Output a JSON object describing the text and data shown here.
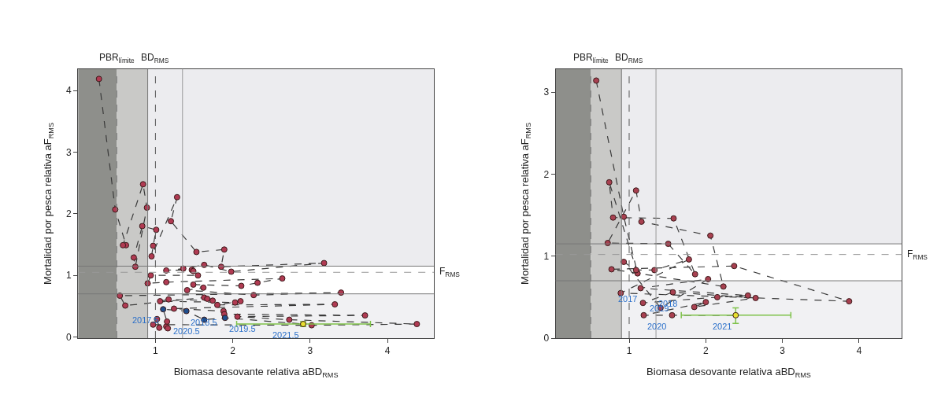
{
  "chart_data": [
    {
      "type": "scatter",
      "xlabel": "Biomasa desovante relativa aBD$_{RMS}$",
      "ylabel": "Mortalidad por pesca relativa aF$_{RMS}$",
      "xlim": [
        0,
        4.6
      ],
      "ylim": [
        -0.02,
        4.35
      ],
      "xticks": [
        1,
        2,
        3,
        4
      ],
      "yticks": [
        0,
        1,
        2,
        3,
        4
      ],
      "grid": false,
      "line_style": "dashed",
      "series": [
        {
          "type": "line",
          "color": "#3a3a3a",
          "marker": "none",
          "x": [
            0.27,
            0.48,
            0.62,
            0.58,
            0.84,
            0.89,
            0.74,
            0.72,
            0.83,
            1.01,
            0.97,
            0.95,
            1.28,
            1.2,
            1.53,
            1.89,
            1.85,
            3.18,
            1.98,
            1.63,
            1.36,
            1.14,
            1.47,
            1.49,
            1.55,
            0.94,
            0.9,
            1.14,
            2.64,
            2.32,
            2.11,
            1.49,
            1.62,
            1.41,
            2.27,
            3.4,
            0.54,
            0.61,
            1.63,
            1.67,
            1.74,
            1.17,
            1.06,
            2.03,
            2.1,
            1.8,
            3.32,
            1.24,
            1.88,
            1.89,
            3.71,
            2.06,
            2.73,
            4.38,
            3.02,
            0.97,
            1.02,
            1.05,
            1.14,
            1.16,
            1.15,
            1.1,
            1.4,
            1.63,
            1.9,
            2.91
          ],
          "values": [
            4.19,
            2.07,
            1.49,
            1.49,
            2.48,
            2.1,
            1.14,
            1.29,
            1.8,
            1.74,
            1.48,
            1.31,
            2.27,
            1.88,
            1.38,
            1.42,
            1.14,
            1.2,
            1.06,
            1.17,
            1.11,
            1.08,
            1.09,
            1.07,
            1.0,
            1.0,
            0.87,
            0.89,
            0.95,
            0.88,
            0.83,
            0.85,
            0.8,
            0.76,
            0.68,
            0.72,
            0.67,
            0.51,
            0.64,
            0.62,
            0.59,
            0.61,
            0.58,
            0.56,
            0.58,
            0.52,
            0.53,
            0.46,
            0.42,
            0.37,
            0.35,
            0.33,
            0.28,
            0.21,
            0.19,
            0.2,
            0.29,
            0.15,
            0.17,
            0.14,
            0.25,
            0.45,
            0.42,
            0.28,
            0.31,
            0.21
          ]
        },
        {
          "type": "scatter",
          "color": "#b03a52",
          "marker": "circle",
          "x": [
            0.27,
            0.48,
            0.62,
            0.58,
            0.84,
            0.89,
            0.74,
            0.72,
            0.83,
            1.01,
            0.97,
            0.95,
            1.28,
            1.2,
            1.53,
            1.89,
            1.85,
            3.18,
            1.98,
            1.63,
            1.36,
            1.14,
            1.47,
            1.49,
            1.55,
            0.94,
            0.9,
            1.14,
            2.64,
            2.32,
            2.11,
            1.49,
            1.62,
            1.41,
            2.27,
            3.4,
            0.54,
            0.61,
            1.63,
            1.67,
            1.74,
            1.17,
            1.06,
            2.03,
            2.1,
            1.8,
            3.32,
            1.24,
            1.88,
            1.89,
            3.71,
            2.06,
            2.73,
            4.38,
            3.02,
            0.97,
            1.02,
            1.05,
            1.14,
            1.16,
            1.15
          ],
          "values": [
            4.19,
            2.07,
            1.49,
            1.49,
            2.48,
            2.1,
            1.14,
            1.29,
            1.8,
            1.74,
            1.48,
            1.31,
            2.27,
            1.88,
            1.38,
            1.42,
            1.14,
            1.2,
            1.06,
            1.17,
            1.11,
            1.08,
            1.09,
            1.07,
            1.0,
            1.0,
            0.87,
            0.89,
            0.95,
            0.88,
            0.83,
            0.85,
            0.8,
            0.76,
            0.68,
            0.72,
            0.67,
            0.51,
            0.64,
            0.62,
            0.59,
            0.61,
            0.58,
            0.56,
            0.58,
            0.52,
            0.53,
            0.46,
            0.42,
            0.37,
            0.35,
            0.33,
            0.28,
            0.21,
            0.19,
            0.2,
            0.29,
            0.15,
            0.17,
            0.14,
            0.25
          ]
        },
        {
          "type": "scatter",
          "color": "#1f4e8c",
          "marker": "circle",
          "x": [
            1.1,
            1.4,
            1.63,
            1.9
          ],
          "values": [
            0.45,
            0.42,
            0.28,
            0.31
          ]
        },
        {
          "type": "scatter",
          "color": "#e8e030",
          "marker": "circle",
          "x": [
            2.91
          ],
          "values": [
            0.21
          ],
          "errors": [
            [
              0.17,
              0.25
            ]
          ],
          "xerrors": [
            [
              2.05,
              3.78
            ]
          ]
        }
      ],
      "bands": [
        {
          "axis": "x",
          "from": 0,
          "to": 0.5,
          "color": "#8e8f8b"
        },
        {
          "axis": "x",
          "from": 0.5,
          "to": 0.9,
          "color": "#c9c9c7"
        },
        {
          "axis": "y",
          "from": 1.15,
          "to": 4.35,
          "color": "#ececef"
        },
        {
          "axis": "y",
          "from": -0.02,
          "to": 0.7,
          "color": "#f1f1f3"
        }
      ],
      "ref_lines": [
        {
          "axis": "x",
          "value": 0.5,
          "label": "PBR$_{límite}$",
          "color": "#777777",
          "line_style": "dashed"
        },
        {
          "axis": "x",
          "value": 1,
          "label": "BD$_{RMS}$",
          "color": "#555555",
          "line_style": "dashed"
        },
        {
          "axis": "y",
          "value": 1.05,
          "label": "F$_{RMS}$",
          "color": "#999999",
          "line_style": "dashed"
        },
        {
          "axis": "y",
          "value": 1.15,
          "color": "#777777",
          "line_style": "solid"
        },
        {
          "axis": "y",
          "value": 0.7,
          "color": "#777777",
          "line_style": "solid"
        },
        {
          "axis": "x",
          "value": 0.9,
          "color": "#777777",
          "line_style": "solid"
        },
        {
          "axis": "x",
          "value": 1.35,
          "color": "#999999",
          "line_style": "solid"
        }
      ],
      "annotations": [
        {
          "text": "2017.5",
          "x": 1.1,
          "y": 0.45
        },
        {
          "text": "2018.5",
          "x": 1.4,
          "y": 0.42
        },
        {
          "text": "2020.5",
          "x": 1.63,
          "y": 0.28
        },
        {
          "text": "2019.5",
          "x": 1.9,
          "y": 0.31
        },
        {
          "text": "2021.5",
          "x": 2.91,
          "y": 0.21
        }
      ]
    },
    {
      "type": "scatter",
      "xlabel": "Biomasa desovante relativa aBD$_{RMS}$",
      "ylabel": "Mortalidad por pesca relativa aF$_{RMS}$",
      "xlim": [
        0.04,
        4.56
      ],
      "ylim": [
        0,
        3.28
      ],
      "xticks": [
        1,
        2,
        3,
        4
      ],
      "yticks": [
        0,
        1,
        2,
        3
      ],
      "grid": false,
      "line_style": "dashed",
      "series": [
        {
          "type": "line",
          "color": "#3a3a3a",
          "marker": "none",
          "x": [
            0.57,
            0.93,
            1.11,
            0.74,
            0.79,
            1.58,
            1.86,
            1.51,
            0.72,
            1.09,
            1.16,
            2.06,
            2.23,
            0.77,
            2.37,
            3.87,
            0.89,
            1.78,
            1.33,
            1.09,
            0.93,
            1.41,
            2.03,
            1.15,
            2.55,
            2.15,
            1.18,
            1.57,
            2.65,
            1.85,
            2.0,
            1.19,
            1.56,
            2.39
          ],
          "values": [
            3.14,
            1.48,
            0.79,
            1.9,
            1.47,
            1.46,
            0.78,
            1.15,
            1.16,
            1.8,
            1.42,
            1.25,
            0.63,
            0.84,
            0.88,
            0.45,
            0.55,
            0.96,
            0.83,
            0.83,
            0.93,
            0.37,
            0.72,
            0.61,
            0.52,
            0.5,
            0.43,
            0.56,
            0.49,
            0.38,
            0.44,
            0.28,
            0.28,
            0.28
          ]
        },
        {
          "type": "scatter",
          "color": "#a84050",
          "marker": "circle",
          "x": [
            0.57,
            0.93,
            1.11,
            0.74,
            0.79,
            1.58,
            1.86,
            1.51,
            0.72,
            1.09,
            1.16,
            2.06,
            2.23,
            0.77,
            2.37,
            3.87,
            0.89,
            1.78,
            1.33,
            1.09,
            0.93,
            1.41,
            2.03,
            1.15,
            2.55,
            2.15,
            1.18,
            1.57,
            2.65,
            1.85,
            2.0,
            1.19,
            1.56
          ],
          "values": [
            3.14,
            1.48,
            0.79,
            1.9,
            1.47,
            1.46,
            0.78,
            1.15,
            1.16,
            1.8,
            1.42,
            1.25,
            0.63,
            0.84,
            0.88,
            0.45,
            0.55,
            0.96,
            0.83,
            0.83,
            0.93,
            0.37,
            0.72,
            0.61,
            0.52,
            0.5,
            0.43,
            0.56,
            0.49,
            0.38,
            0.44,
            0.28,
            0.28
          ]
        },
        {
          "type": "scatter",
          "color": "#e8e030",
          "marker": "circle",
          "x": [
            2.39
          ],
          "values": [
            0.28
          ],
          "errors": [
            [
              0.18,
              0.37
            ]
          ],
          "xerrors": [
            [
              1.68,
              3.11
            ]
          ]
        }
      ],
      "bands": [
        {
          "axis": "x",
          "from": 0.04,
          "to": 0.5,
          "color": "#8e8f8b"
        },
        {
          "axis": "x",
          "from": 0.5,
          "to": 0.9,
          "color": "#c9c9c7"
        },
        {
          "axis": "y",
          "from": 1.15,
          "to": 3.28,
          "color": "#ececef"
        },
        {
          "axis": "y",
          "from": 0,
          "to": 0.7,
          "color": "#f1f1f3"
        }
      ],
      "ref_lines": [
        {
          "axis": "x",
          "value": 0.5,
          "label": "PBR$_{límite}$",
          "color": "#777777",
          "line_style": "dashed"
        },
        {
          "axis": "x",
          "value": 1,
          "label": "BD$_{RMS}$",
          "color": "#555555",
          "line_style": "dashed"
        },
        {
          "axis": "y",
          "value": 1.02,
          "label": "F$_{RMS}$",
          "color": "#999999",
          "line_style": "dashed"
        },
        {
          "axis": "y",
          "value": 1.15,
          "color": "#777777",
          "line_style": "solid"
        },
        {
          "axis": "y",
          "value": 0.7,
          "color": "#777777",
          "line_style": "solid"
        },
        {
          "axis": "x",
          "value": 0.9,
          "color": "#777777",
          "line_style": "solid"
        },
        {
          "axis": "x",
          "value": 1.35,
          "color": "#999999",
          "line_style": "solid"
        }
      ],
      "annotations": [
        {
          "text": "2017",
          "x": 1.15,
          "y": 0.61
        },
        {
          "text": "2018",
          "x": 1.33,
          "y": 0.56
        },
        {
          "text": "2019",
          "x": 1.57,
          "y": 0.5
        },
        {
          "text": "2020",
          "x": 1.19,
          "y": 0.28
        },
        {
          "text": "2021",
          "x": 2.39,
          "y": 0.28
        }
      ]
    }
  ]
}
